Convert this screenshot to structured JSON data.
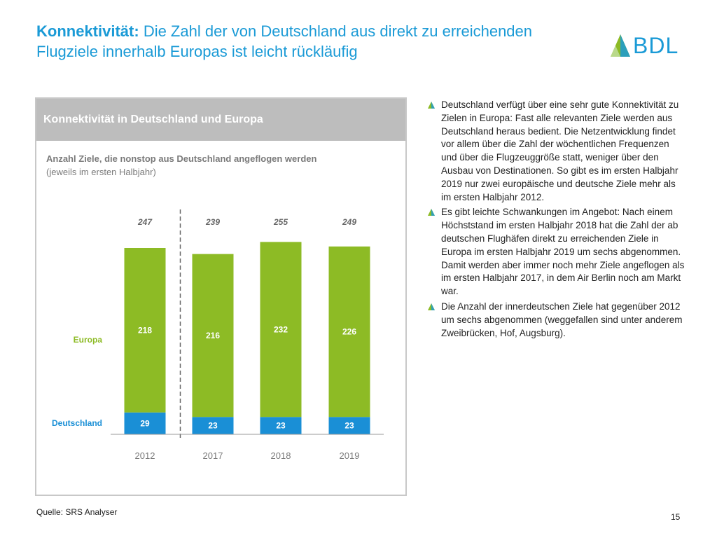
{
  "header": {
    "title_bold": "Konnektivität:",
    "title_line1": "Die Zahl der von Deutschland aus direkt zu erreichenden",
    "title_line2": "Flugziele innerhalb Europas ist leicht rückläufig",
    "logo_text": "BDL"
  },
  "panel": {
    "title": "Konnektivität in Deutschland und Europa",
    "subtitle": "Anzahl Ziele, die nonstop aus Deutschland angeflogen werden",
    "note": "(jeweils im ersten Halbjahr)"
  },
  "chart_data": {
    "type": "bar",
    "stacked": true,
    "categories": [
      "2012",
      "2017",
      "2018",
      "2019"
    ],
    "series": [
      {
        "name": "Deutschland",
        "values": [
          29,
          23,
          23,
          23
        ],
        "color": "#1a8fd6"
      },
      {
        "name": "Europa",
        "values": [
          218,
          216,
          232,
          226
        ],
        "color": "#8dbb25"
      }
    ],
    "totals": [
      247,
      239,
      255,
      249
    ],
    "ylim": [
      0,
      260
    ],
    "separator_after": "2012",
    "title": "Konnektivität in Deutschland und Europa"
  },
  "bullets": [
    {
      "text": "Deutschland verfügt über eine sehr gute Konnektivität zu Zielen in Europa: Fast alle relevanten Ziele werden aus Deutschland heraus bedient. Die Netzentwicklung findet vor allem über die Zahl der wöchentlichen Frequenzen und über die Flugzeuggröße statt, weniger über den Ausbau von Destinationen. So gibt es im ersten Halbjahr 2019 nur zwei europäische und deutsche Ziele mehr als im ersten Halbjahr 2012."
    },
    {
      "text": "Es gibt leichte Schwankungen im Angebot: Nach einem Höchststand im ersten Halbjahr 2018 hat die Zahl der ab deutschen Flughäfen direkt zu erreichenden Ziele in Europa im ersten Halbjahr 2019 um sechs abgenommen. Damit werden aber immer noch mehr Ziele angeflogen als im ersten Halbjahr 2017, in dem Air Berlin noch am Markt war."
    },
    {
      "text": "Die Anzahl der innerdeutschen Ziele hat gegenüber 2012 um sechs abgenommen (weggefallen sind unter anderem Zweibrücken, Hof, Augsburg)."
    }
  ],
  "footer": {
    "source": "Quelle: SRS Analyser",
    "page": "15"
  }
}
